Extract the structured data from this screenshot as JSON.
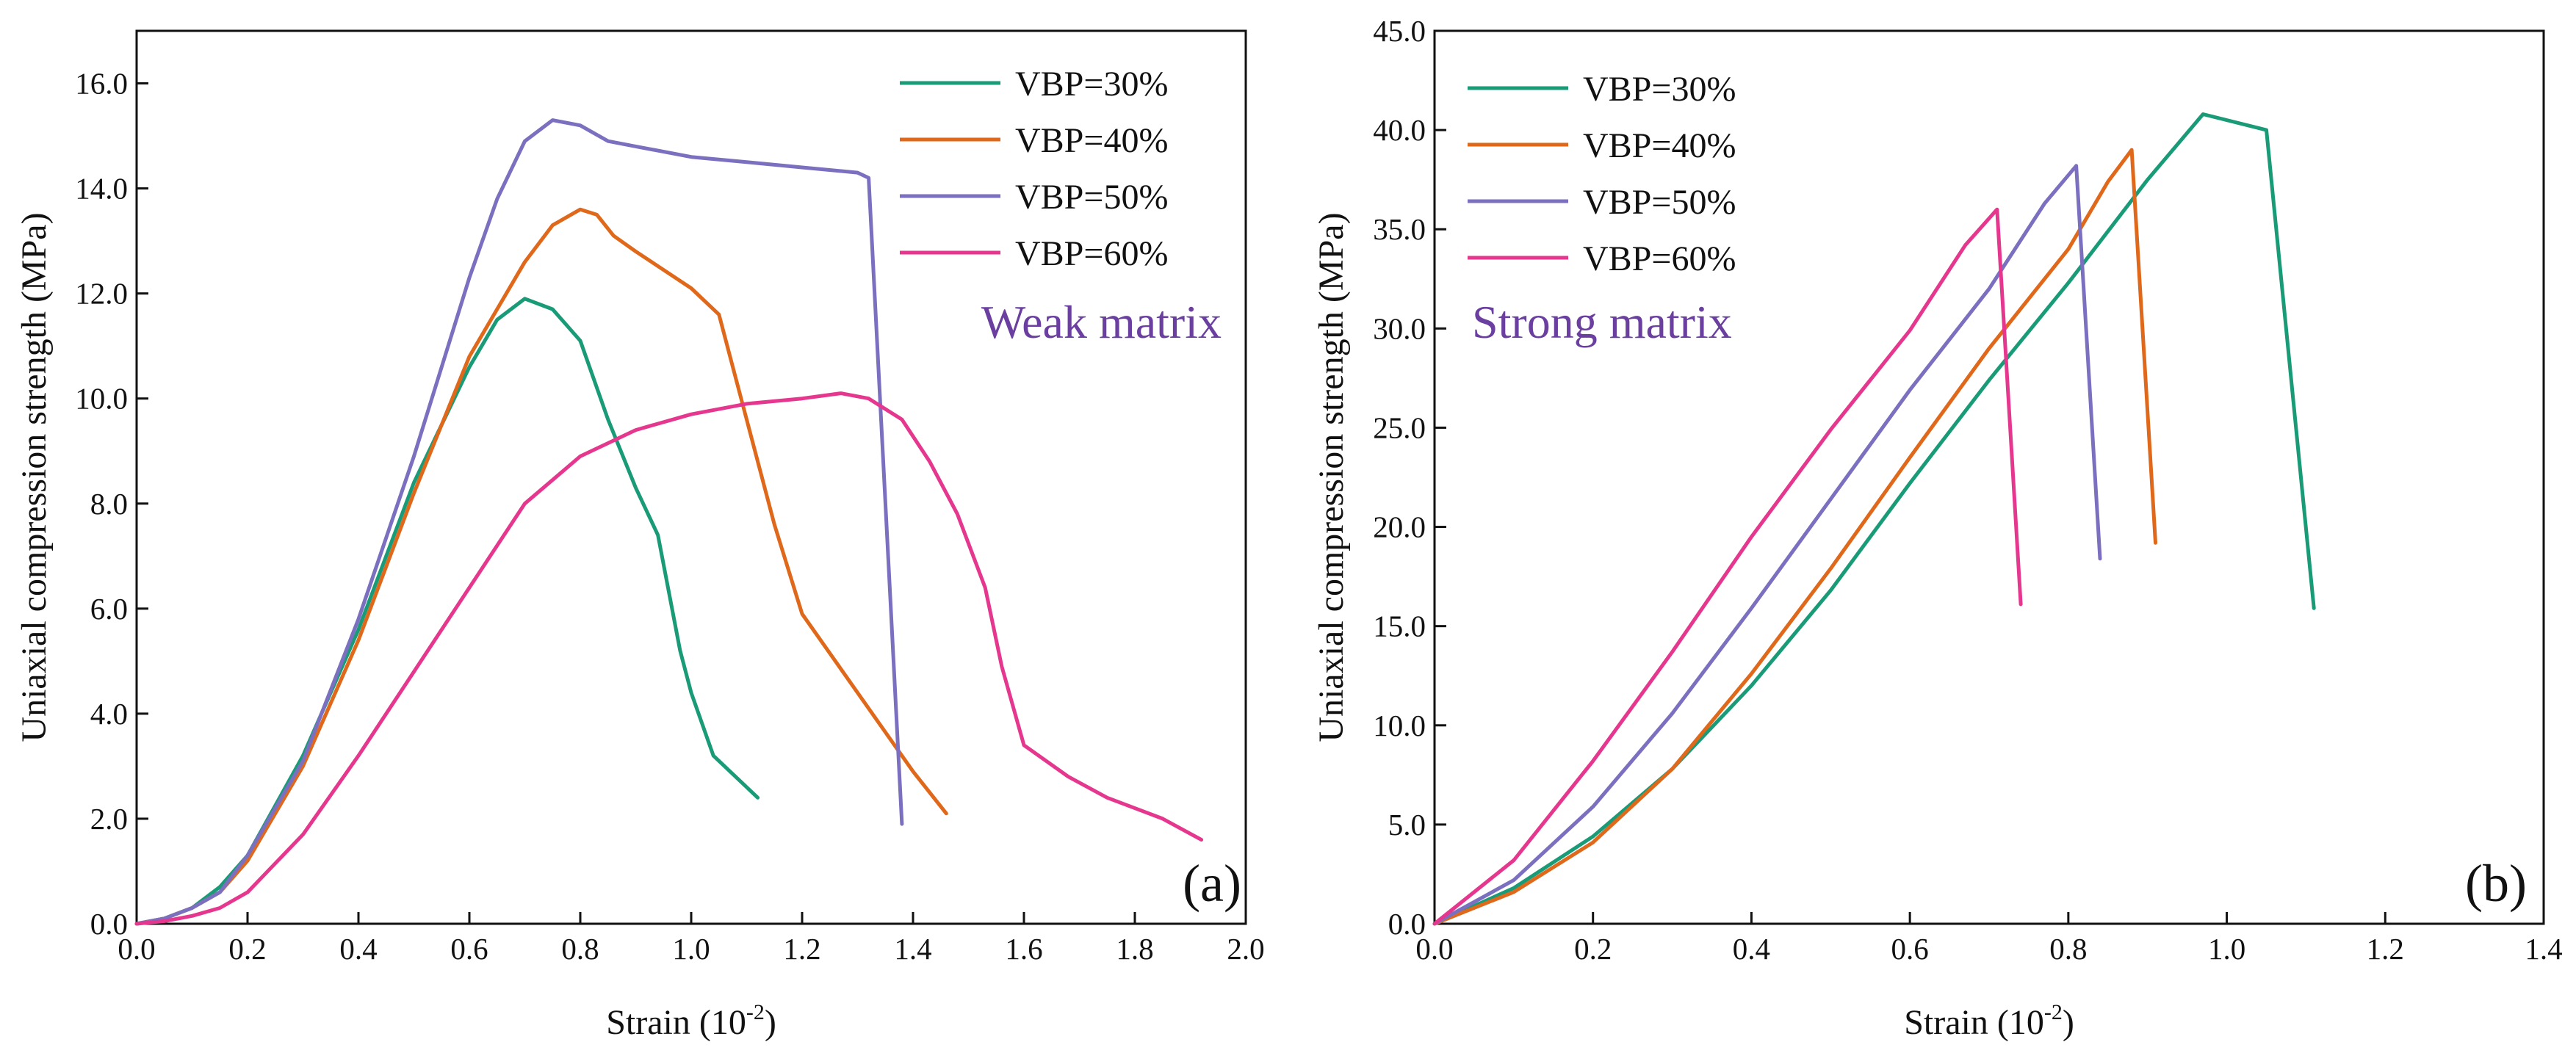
{
  "colors": {
    "VBP=30%": "#1a9b78",
    "VBP=40%": "#e0681a",
    "VBP=50%": "#7b6fc0",
    "VBP=60%": "#e6378f",
    "annotation": "#6a3fa0",
    "axis": "#111111"
  },
  "chart_data": [
    {
      "type": "line",
      "panel_label": "(a)",
      "title": "Weak matrix",
      "xlabel": "Strain (10",
      "xlabel_exponent": "-2",
      "ylabel": "Uniaxial compression strength (MPa)",
      "xlim": [
        0,
        2.0
      ],
      "ylim": [
        0,
        17
      ],
      "xticks": [
        "0.0",
        "0.2",
        "0.4",
        "0.6",
        "0.8",
        "1.0",
        "1.2",
        "1.4",
        "1.6",
        "1.8",
        "2.0"
      ],
      "yticks": [
        "0.0",
        "2.0",
        "4.0",
        "6.0",
        "8.0",
        "10.0",
        "12.0",
        "14.0",
        "16.0"
      ],
      "legend_position": "top-right",
      "series": [
        {
          "name": "VBP=30%",
          "x": [
            0,
            0.05,
            0.1,
            0.15,
            0.2,
            0.3,
            0.4,
            0.5,
            0.6,
            0.65,
            0.7,
            0.75,
            0.8,
            0.85,
            0.9,
            0.94,
            0.98,
            1.0,
            1.04,
            1.08,
            1.12
          ],
          "y": [
            0,
            0.1,
            0.3,
            0.7,
            1.3,
            3.2,
            5.6,
            8.4,
            10.6,
            11.5,
            11.9,
            11.7,
            11.1,
            9.6,
            8.3,
            7.4,
            5.2,
            4.4,
            3.2,
            2.8,
            2.4
          ]
        },
        {
          "name": "VBP=40%",
          "x": [
            0,
            0.05,
            0.1,
            0.15,
            0.2,
            0.3,
            0.4,
            0.5,
            0.6,
            0.7,
            0.75,
            0.8,
            0.83,
            0.86,
            0.9,
            1.0,
            1.05,
            1.1,
            1.15,
            1.2,
            1.3,
            1.4,
            1.46
          ],
          "y": [
            0,
            0.1,
            0.3,
            0.6,
            1.2,
            3.0,
            5.4,
            8.2,
            10.8,
            12.6,
            13.3,
            13.6,
            13.5,
            13.1,
            12.8,
            12.1,
            11.6,
            9.6,
            7.6,
            5.9,
            4.4,
            2.9,
            2.1
          ]
        },
        {
          "name": "VBP=50%",
          "x": [
            0,
            0.05,
            0.1,
            0.15,
            0.2,
            0.3,
            0.4,
            0.5,
            0.6,
            0.65,
            0.7,
            0.75,
            0.8,
            0.85,
            0.9,
            1.0,
            1.1,
            1.2,
            1.3,
            1.32,
            1.38
          ],
          "y": [
            0,
            0.1,
            0.3,
            0.6,
            1.3,
            3.1,
            5.8,
            8.9,
            12.3,
            13.8,
            14.9,
            15.3,
            15.2,
            14.9,
            14.8,
            14.6,
            14.5,
            14.4,
            14.3,
            14.2,
            1.9
          ]
        },
        {
          "name": "VBP=60%",
          "x": [
            0,
            0.05,
            0.1,
            0.15,
            0.2,
            0.3,
            0.4,
            0.5,
            0.6,
            0.7,
            0.8,
            0.9,
            1.0,
            1.1,
            1.2,
            1.27,
            1.32,
            1.38,
            1.43,
            1.48,
            1.53,
            1.56,
            1.6,
            1.68,
            1.75,
            1.85,
            1.92
          ],
          "y": [
            0,
            0.05,
            0.15,
            0.3,
            0.6,
            1.7,
            3.2,
            4.8,
            6.4,
            8.0,
            8.9,
            9.4,
            9.7,
            9.9,
            10.0,
            10.1,
            10.0,
            9.6,
            8.8,
            7.8,
            6.4,
            4.9,
            3.4,
            2.8,
            2.4,
            2.0,
            1.6
          ]
        }
      ]
    },
    {
      "type": "line",
      "panel_label": "(b)",
      "title": "Strong matrix",
      "xlabel": "Strain (10",
      "xlabel_exponent": "-2",
      "ylabel": "Uniaxial compression strength (MPa)",
      "xlim": [
        0,
        1.4
      ],
      "ylim": [
        0,
        45
      ],
      "xticks": [
        "0.0",
        "0.2",
        "0.4",
        "0.6",
        "0.8",
        "1.0",
        "1.2",
        "1.4"
      ],
      "yticks": [
        "0.0",
        "5.0",
        "10.0",
        "15.0",
        "20.0",
        "25.0",
        "30.0",
        "35.0",
        "40.0",
        "45.0"
      ],
      "legend_position": "top-left",
      "series": [
        {
          "name": "VBP=30%",
          "x": [
            0,
            0.1,
            0.2,
            0.3,
            0.4,
            0.5,
            0.6,
            0.7,
            0.8,
            0.9,
            0.97,
            1.05,
            1.11
          ],
          "y": [
            0,
            1.8,
            4.4,
            7.8,
            12.0,
            16.8,
            22.2,
            27.4,
            32.3,
            37.5,
            40.8,
            40.0,
            15.9
          ]
        },
        {
          "name": "VBP=40%",
          "x": [
            0,
            0.1,
            0.2,
            0.3,
            0.4,
            0.5,
            0.6,
            0.7,
            0.8,
            0.85,
            0.88,
            0.91
          ],
          "y": [
            0,
            1.6,
            4.1,
            7.8,
            12.6,
            17.9,
            23.5,
            29.0,
            34.0,
            37.4,
            39.0,
            19.2
          ]
        },
        {
          "name": "VBP=50%",
          "x": [
            0,
            0.1,
            0.2,
            0.3,
            0.4,
            0.5,
            0.6,
            0.7,
            0.77,
            0.81,
            0.84
          ],
          "y": [
            0,
            2.2,
            5.9,
            10.6,
            15.9,
            21.4,
            26.9,
            32.0,
            36.3,
            38.2,
            18.4
          ]
        },
        {
          "name": "VBP=60%",
          "x": [
            0,
            0.1,
            0.2,
            0.3,
            0.4,
            0.5,
            0.6,
            0.67,
            0.71,
            0.74
          ],
          "y": [
            0,
            3.2,
            8.2,
            13.7,
            19.5,
            24.9,
            29.9,
            34.2,
            36.0,
            16.1
          ]
        }
      ]
    }
  ]
}
